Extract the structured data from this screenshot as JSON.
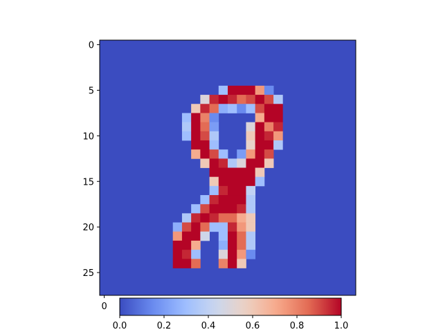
{
  "chart_data": {
    "type": "heatmap",
    "colormap": "coolwarm",
    "colormap_stops": [
      "#3b4cc0",
      "#6788ee",
      "#9abbff",
      "#c9d7f0",
      "#edd1c2",
      "#f7a889",
      "#e26952",
      "#b40426"
    ],
    "rows": 28,
    "cols": 28,
    "background_value": 0.0,
    "cells": [
      [
        5,
        13,
        0.3
      ],
      [
        5,
        14,
        1.0
      ],
      [
        5,
        15,
        1.0
      ],
      [
        5,
        16,
        1.0
      ],
      [
        5,
        17,
        0.75
      ],
      [
        5,
        18,
        0.15
      ],
      [
        6,
        11,
        0.5
      ],
      [
        6,
        12,
        0.95
      ],
      [
        6,
        13,
        1.0
      ],
      [
        6,
        14,
        0.95
      ],
      [
        6,
        15,
        0.85
      ],
      [
        6,
        16,
        0.9
      ],
      [
        6,
        17,
        1.0
      ],
      [
        6,
        18,
        0.9
      ],
      [
        6,
        19,
        0.35
      ],
      [
        7,
        10,
        0.6
      ],
      [
        7,
        11,
        0.95
      ],
      [
        7,
        12,
        0.85
      ],
      [
        7,
        13,
        0.25
      ],
      [
        7,
        14,
        0.3
      ],
      [
        7,
        15,
        0.15
      ],
      [
        7,
        16,
        0.3
      ],
      [
        7,
        17,
        0.9
      ],
      [
        7,
        18,
        1.0
      ],
      [
        7,
        19,
        1.0
      ],
      [
        8,
        9,
        0.3
      ],
      [
        8,
        10,
        1.0
      ],
      [
        8,
        11,
        0.8
      ],
      [
        8,
        12,
        0.15
      ],
      [
        8,
        17,
        0.7
      ],
      [
        8,
        18,
        1.0
      ],
      [
        8,
        19,
        1.0
      ],
      [
        9,
        9,
        0.35
      ],
      [
        9,
        10,
        1.0
      ],
      [
        9,
        11,
        0.85
      ],
      [
        9,
        12,
        0.2
      ],
      [
        9,
        16,
        0.5
      ],
      [
        9,
        17,
        1.0
      ],
      [
        9,
        18,
        0.8
      ],
      [
        9,
        19,
        0.95
      ],
      [
        10,
        9,
        0.3
      ],
      [
        10,
        10,
        1.0
      ],
      [
        10,
        11,
        0.9
      ],
      [
        10,
        12,
        0.35
      ],
      [
        10,
        16,
        0.6
      ],
      [
        10,
        17,
        1.0
      ],
      [
        10,
        18,
        0.95
      ],
      [
        10,
        19,
        0.75
      ],
      [
        11,
        10,
        1.0
      ],
      [
        11,
        11,
        1.0
      ],
      [
        11,
        12,
        0.3
      ],
      [
        11,
        16,
        0.55
      ],
      [
        11,
        17,
        1.0
      ],
      [
        11,
        18,
        1.0
      ],
      [
        11,
        19,
        0.35
      ],
      [
        12,
        10,
        0.7
      ],
      [
        12,
        11,
        1.0
      ],
      [
        12,
        12,
        0.9
      ],
      [
        12,
        13,
        0.3
      ],
      [
        12,
        15,
        0.2
      ],
      [
        12,
        16,
        0.75
      ],
      [
        12,
        17,
        1.0
      ],
      [
        12,
        18,
        0.9
      ],
      [
        13,
        11,
        0.6
      ],
      [
        13,
        12,
        1.0
      ],
      [
        13,
        13,
        0.95
      ],
      [
        13,
        14,
        0.35
      ],
      [
        13,
        15,
        0.5
      ],
      [
        13,
        16,
        1.0
      ],
      [
        13,
        17,
        1.0
      ],
      [
        13,
        18,
        0.6
      ],
      [
        14,
        12,
        1.0
      ],
      [
        14,
        13,
        1.0
      ],
      [
        14,
        14,
        1.0
      ],
      [
        14,
        15,
        1.0
      ],
      [
        14,
        16,
        1.0
      ],
      [
        14,
        17,
        0.6
      ],
      [
        15,
        12,
        0.6
      ],
      [
        15,
        13,
        1.0
      ],
      [
        15,
        14,
        1.0
      ],
      [
        15,
        15,
        1.0
      ],
      [
        15,
        16,
        1.0
      ],
      [
        15,
        17,
        0.3
      ],
      [
        16,
        12,
        0.3
      ],
      [
        16,
        13,
        0.95
      ],
      [
        16,
        14,
        1.0
      ],
      [
        16,
        15,
        1.0
      ],
      [
        16,
        16,
        0.4
      ],
      [
        17,
        11,
        0.3
      ],
      [
        17,
        12,
        0.95
      ],
      [
        17,
        13,
        1.0
      ],
      [
        17,
        14,
        1.0
      ],
      [
        17,
        15,
        1.0
      ],
      [
        17,
        16,
        0.35
      ],
      [
        18,
        10,
        0.3
      ],
      [
        18,
        11,
        0.9
      ],
      [
        18,
        12,
        1.0
      ],
      [
        18,
        13,
        1.0
      ],
      [
        18,
        14,
        1.0
      ],
      [
        18,
        15,
        0.95
      ],
      [
        18,
        16,
        0.35
      ],
      [
        19,
        9,
        0.35
      ],
      [
        19,
        10,
        0.95
      ],
      [
        19,
        11,
        1.0
      ],
      [
        19,
        12,
        0.95
      ],
      [
        19,
        13,
        0.85
      ],
      [
        19,
        14,
        0.85
      ],
      [
        19,
        15,
        0.7
      ],
      [
        19,
        16,
        0.6
      ],
      [
        20,
        8,
        0.25
      ],
      [
        20,
        9,
        0.9
      ],
      [
        20,
        10,
        1.0
      ],
      [
        20,
        11,
        0.85
      ],
      [
        20,
        12,
        0.3
      ],
      [
        20,
        13,
        0.3
      ],
      [
        20,
        14,
        0.95
      ],
      [
        20,
        15,
        0.75
      ],
      [
        20,
        16,
        0.6
      ],
      [
        21,
        8,
        0.75
      ],
      [
        21,
        9,
        1.0
      ],
      [
        21,
        10,
        1.0
      ],
      [
        21,
        11,
        0.45
      ],
      [
        21,
        13,
        0.3
      ],
      [
        21,
        14,
        1.0
      ],
      [
        21,
        15,
        0.85
      ],
      [
        21,
        16,
        0.35
      ],
      [
        22,
        8,
        1.0
      ],
      [
        22,
        9,
        1.0
      ],
      [
        22,
        10,
        0.7
      ],
      [
        22,
        13,
        0.25
      ],
      [
        22,
        14,
        1.0
      ],
      [
        22,
        15,
        0.85
      ],
      [
        22,
        16,
        0.35
      ],
      [
        23,
        8,
        1.0
      ],
      [
        23,
        9,
        0.95
      ],
      [
        23,
        10,
        0.3
      ],
      [
        23,
        13,
        0.5
      ],
      [
        23,
        14,
        1.0
      ],
      [
        23,
        15,
        0.75
      ],
      [
        23,
        16,
        0.15
      ],
      [
        24,
        8,
        1.0
      ],
      [
        24,
        9,
        1.0
      ],
      [
        24,
        10,
        0.85
      ],
      [
        24,
        13,
        0.8
      ],
      [
        24,
        14,
        1.0
      ],
      [
        24,
        15,
        0.6
      ]
    ],
    "y_ticks": [
      0,
      5,
      10,
      15,
      20,
      25
    ],
    "x_ticks": [
      0
    ],
    "colorbar": {
      "range": [
        0.0,
        1.0
      ],
      "ticks": [
        "0.0",
        "0.2",
        "0.4",
        "0.6",
        "0.8",
        "1.0"
      ],
      "orientation": "horizontal"
    },
    "title": "",
    "xlabel": "",
    "ylabel": ""
  }
}
